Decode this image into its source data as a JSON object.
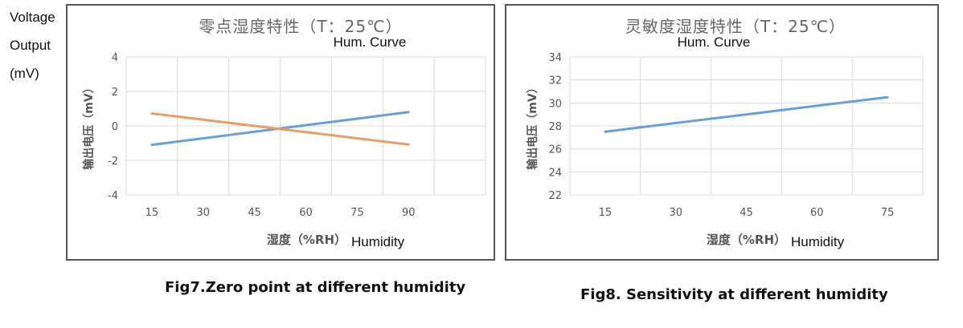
{
  "side_labels": [
    "Voltage",
    "Output",
    "(mV)"
  ],
  "chart_data": [
    {
      "type": "line",
      "title": "零点湿度特性（T：25℃）",
      "subtitle": "Hum. Curve",
      "xlabel": "湿度（%RH）",
      "xlabel_en": "Humidity",
      "ylabel": "输出电压（mV）",
      "x": [
        15,
        30,
        45,
        60,
        75,
        90
      ],
      "xticks": [
        "15",
        "30",
        "45",
        "60",
        "75",
        "90"
      ],
      "yticks": [
        "4",
        "2",
        "0",
        "-2",
        "-4"
      ],
      "ylim": [
        -4,
        4
      ],
      "grid": true,
      "series": [
        {
          "color": "#6a9fcf",
          "values": [
            -1.1,
            -0.72,
            -0.34,
            0.04,
            0.42,
            0.8
          ]
        },
        {
          "color": "#e2a06c",
          "values": [
            0.72,
            0.36,
            0.0,
            -0.36,
            -0.72,
            -1.08
          ]
        }
      ]
    },
    {
      "type": "line",
      "title": "灵敏度湿度特性（T：25℃）",
      "subtitle": "Hum. Curve",
      "xlabel": "湿度（%RH）",
      "xlabel_en": "Humidity",
      "ylabel": "输出电压（mV）",
      "x": [
        15,
        30,
        45,
        60,
        75
      ],
      "xticks": [
        "15",
        "30",
        "45",
        "60",
        "75"
      ],
      "yticks": [
        "34",
        "32",
        "30",
        "28",
        "26",
        "24",
        "22"
      ],
      "ylim": [
        22,
        34
      ],
      "grid": true,
      "series": [
        {
          "color": "#6a9fcf",
          "values": [
            27.5,
            28.25,
            29.0,
            29.75,
            30.5
          ]
        }
      ]
    }
  ],
  "captions": {
    "fig7": "Fig7.Zero point at different humidity",
    "fig8": "Fig8. Sensitivity at different humidity"
  }
}
